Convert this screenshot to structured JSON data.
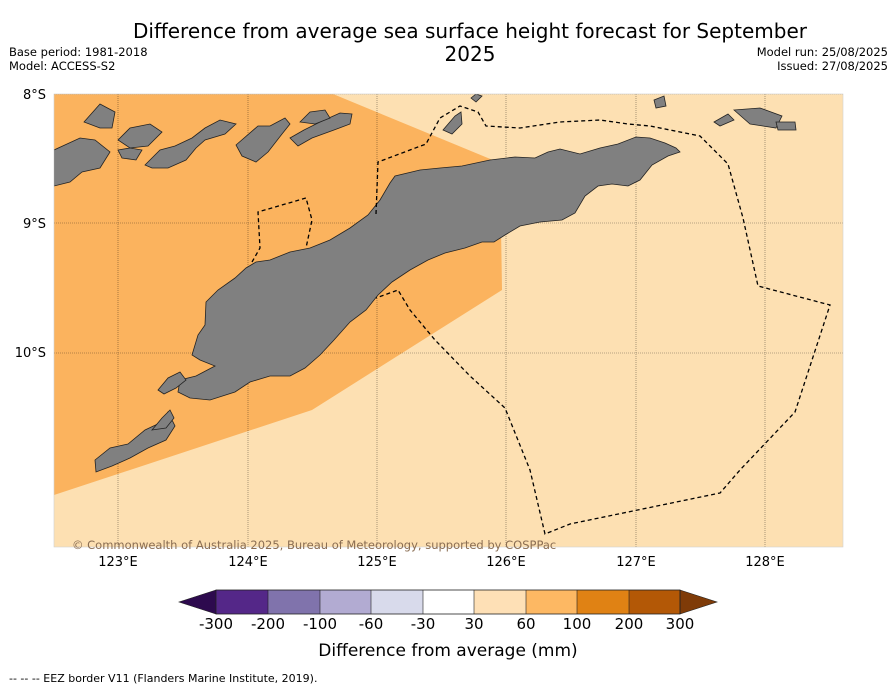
{
  "header": {
    "title": "Difference from average sea surface height forecast for September 2025",
    "base_period": "Base period: 1981-2018",
    "model": "Model: ACCESS-S2",
    "model_run": "Model run: 25/08/2025",
    "issued": "Issued: 27/08/2025"
  },
  "map": {
    "lat_labels": [
      "8°S",
      "9°S",
      "10°S"
    ],
    "lon_labels": [
      "123°E",
      "124°E",
      "125°E",
      "126°E",
      "127°E",
      "128°E"
    ],
    "copyright": "© Commonwealth of Australia 2025, Bureau of Meteorology, supported by COSPPac",
    "colors": {
      "ocean_30_60": "#fde0b2",
      "ocean_60_100": "#fbb35e",
      "land": "#808080",
      "eez_border": "#000000"
    }
  },
  "colorbar": {
    "title": "Difference from average (mm)",
    "ticks": [
      "-300",
      "-200",
      "-100",
      "-60",
      "-30",
      "30",
      "60",
      "100",
      "200",
      "300"
    ],
    "colors": [
      "#2d0a4e",
      "#542788",
      "#8073ac",
      "#b2abd2",
      "#d8daeb",
      "#ffffff",
      "#fee0b6",
      "#fdb863",
      "#e08214",
      "#b35806",
      "#7f3b08"
    ]
  },
  "footnote": "--  --  -- EEZ border V11 (Flanders Marine Institute, 2019)."
}
